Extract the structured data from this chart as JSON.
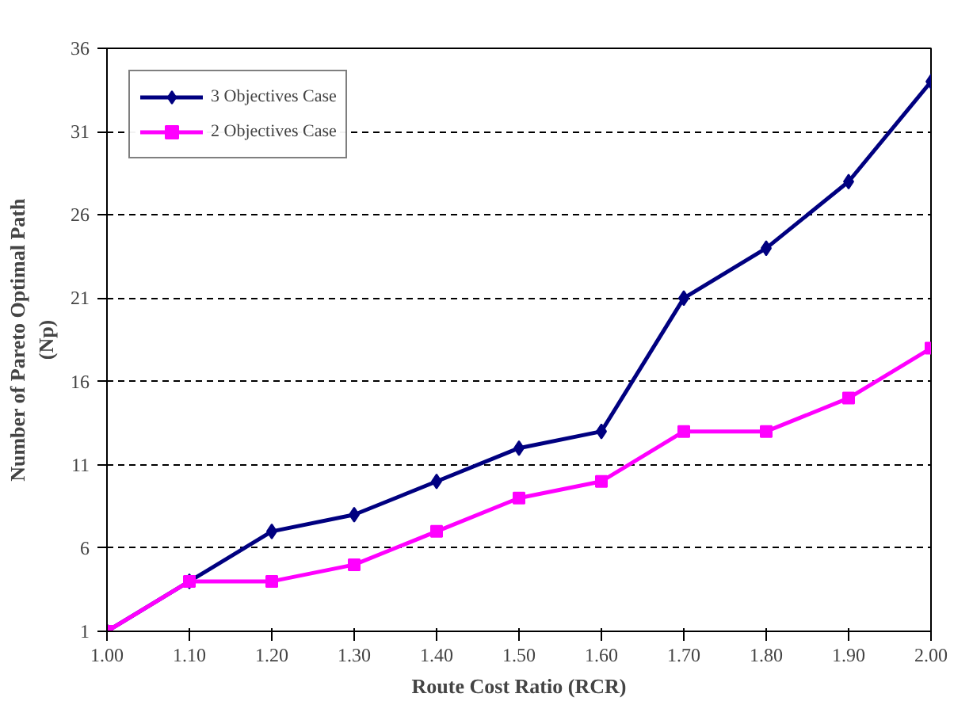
{
  "chart_data": {
    "type": "line",
    "xlabel": "Route Cost Ratio (RCR)",
    "ylabel": "Number of Pareto Optimal Path\n(Np)",
    "x": [
      1.0,
      1.1,
      1.2,
      1.3,
      1.4,
      1.5,
      1.6,
      1.7,
      1.8,
      1.9,
      2.0
    ],
    "xlim": [
      1.0,
      2.0
    ],
    "xticks": [
      {
        "value": 1.0,
        "label": "1.00"
      },
      {
        "value": 1.1,
        "label": "1.10"
      },
      {
        "value": 1.2,
        "label": "1.20"
      },
      {
        "value": 1.3,
        "label": "1.30"
      },
      {
        "value": 1.4,
        "label": "1.40"
      },
      {
        "value": 1.5,
        "label": "1.50"
      },
      {
        "value": 1.6,
        "label": "1.60"
      },
      {
        "value": 1.7,
        "label": "1.70"
      },
      {
        "value": 1.8,
        "label": "1.80"
      },
      {
        "value": 1.9,
        "label": "1.90"
      },
      {
        "value": 2.0,
        "label": "2.00"
      }
    ],
    "ylim": [
      1,
      36
    ],
    "yticks": [
      1,
      6,
      11,
      16,
      21,
      26,
      31,
      36
    ],
    "grid": "y",
    "legend": "top left",
    "series": [
      {
        "name": "3 Objectives Case",
        "color": "#000080",
        "marker": "diamond",
        "values": [
          1,
          4,
          7,
          8,
          10,
          12,
          13,
          21,
          24,
          28,
          34
        ]
      },
      {
        "name": "2 Objectives Case",
        "color": "#ff00ff",
        "marker": "square",
        "values": [
          1,
          4,
          4,
          5,
          7,
          9,
          10,
          13,
          13,
          15,
          18
        ]
      }
    ]
  }
}
